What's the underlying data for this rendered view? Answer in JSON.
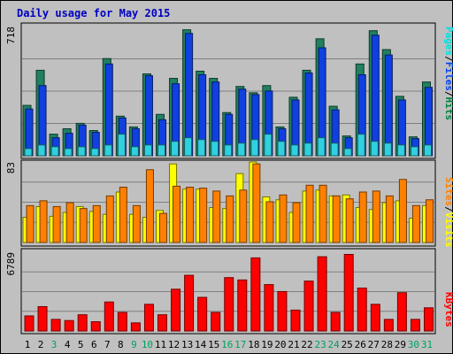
{
  "chart_data": [
    {
      "type": "bar",
      "title": "Daily usage for May 2015",
      "max_label": "718",
      "legend": [
        {
          "text": "Pages",
          "color": "#00e0e0"
        },
        {
          "text": "/",
          "color": "#000000"
        },
        {
          "text": "Files",
          "color": "#0044ee"
        },
        {
          "text": "/",
          "color": "#000000"
        },
        {
          "text": "Hits",
          "color": "#008040"
        }
      ],
      "ylim": [
        0,
        718
      ],
      "categories": [
        "1",
        "2",
        "3",
        "4",
        "5",
        "6",
        "7",
        "8",
        "9",
        "10",
        "11",
        "12",
        "13",
        "14",
        "15",
        "16",
        "17",
        "18",
        "19",
        "20",
        "21",
        "22",
        "23",
        "24",
        "25",
        "26",
        "27",
        "28",
        "29",
        "30",
        "31"
      ],
      "series": [
        {
          "name": "Hits",
          "color": "#208060",
          "values": [
            280,
            475,
            120,
            150,
            180,
            140,
            540,
            220,
            160,
            455,
            230,
            430,
            700,
            470,
            430,
            240,
            385,
            350,
            390,
            160,
            325,
            475,
            650,
            275,
            110,
            510,
            695,
            590,
            330,
            105,
            410
          ]
        },
        {
          "name": "Files",
          "color": "#1040e0",
          "values": [
            260,
            390,
            100,
            125,
            170,
            130,
            510,
            210,
            150,
            445,
            200,
            400,
            680,
            450,
            410,
            230,
            370,
            340,
            360,
            150,
            310,
            460,
            600,
            255,
            100,
            450,
            670,
            560,
            310,
            95,
            380
          ]
        },
        {
          "name": "Pages",
          "color": "#30d0e0",
          "values": [
            40,
            60,
            50,
            40,
            50,
            40,
            60,
            120,
            50,
            60,
            60,
            80,
            100,
            90,
            80,
            60,
            70,
            90,
            120,
            80,
            60,
            70,
            100,
            70,
            40,
            120,
            80,
            70,
            60,
            50,
            60
          ]
        }
      ]
    },
    {
      "type": "bar",
      "max_label": "83",
      "legend": [
        {
          "text": "Sites",
          "color": "#ff8000"
        },
        {
          "text": "/",
          "color": "#000000"
        },
        {
          "text": "Visits",
          "color": "#ffff00"
        }
      ],
      "ylim": [
        0,
        83
      ],
      "categories": [
        "1",
        "2",
        "3",
        "4",
        "5",
        "6",
        "7",
        "8",
        "9",
        "10",
        "11",
        "12",
        "13",
        "14",
        "15",
        "16",
        "17",
        "18",
        "19",
        "20",
        "21",
        "22",
        "23",
        "24",
        "25",
        "26",
        "27",
        "28",
        "29",
        "30",
        "31"
      ],
      "series": [
        {
          "name": "Visits",
          "color": "#ffff00",
          "values": [
            26,
            37,
            27,
            31,
            37,
            32,
            29,
            52,
            29,
            26,
            33,
            81,
            55,
            55,
            36,
            35,
            71,
            83,
            47,
            44,
            31,
            53,
            54,
            48,
            49,
            36,
            34,
            41,
            43,
            25,
            38
          ]
        },
        {
          "name": "Sites",
          "color": "#ff8000",
          "values": [
            38,
            43,
            37,
            41,
            35,
            38,
            48,
            57,
            38,
            75,
            30,
            58,
            57,
            56,
            53,
            48,
            54,
            81,
            42,
            49,
            41,
            59,
            59,
            48,
            45,
            52,
            53,
            48,
            65,
            38,
            44
          ]
        }
      ]
    },
    {
      "type": "bar",
      "max_label": "6789",
      "legend": [
        {
          "text": "KBytes",
          "color": "#ff0000"
        }
      ],
      "ylim": [
        0,
        6789
      ],
      "categories": [
        "1",
        "2",
        "3",
        "4",
        "5",
        "6",
        "7",
        "8",
        "9",
        "10",
        "11",
        "12",
        "13",
        "14",
        "15",
        "16",
        "17",
        "18",
        "19",
        "20",
        "21",
        "22",
        "23",
        "24",
        "25",
        "26",
        "27",
        "28",
        "29",
        "30",
        "31"
      ],
      "series": [
        {
          "name": "KBytes",
          "color": "#ff0000",
          "values": [
            1300,
            2100,
            1000,
            900,
            1400,
            800,
            2500,
            1600,
            700,
            2300,
            1400,
            3600,
            4800,
            2900,
            1600,
            4600,
            4400,
            6300,
            4000,
            3400,
            1800,
            4300,
            6400,
            1600,
            6600,
            3700,
            2300,
            1000,
            3300,
            1000,
            2000
          ]
        }
      ]
    }
  ],
  "day_labels": [
    {
      "text": "1",
      "color": "#000000"
    },
    {
      "text": "2",
      "color": "#000000"
    },
    {
      "text": "3",
      "color": "#00a060"
    },
    {
      "text": "4",
      "color": "#000000"
    },
    {
      "text": "5",
      "color": "#000000"
    },
    {
      "text": "6",
      "color": "#000000"
    },
    {
      "text": "7",
      "color": "#000000"
    },
    {
      "text": "8",
      "color": "#000000"
    },
    {
      "text": "9",
      "color": "#00a060"
    },
    {
      "text": "10",
      "color": "#00a060"
    },
    {
      "text": "11",
      "color": "#000000"
    },
    {
      "text": "12",
      "color": "#000000"
    },
    {
      "text": "13",
      "color": "#000000"
    },
    {
      "text": "14",
      "color": "#000000"
    },
    {
      "text": "15",
      "color": "#000000"
    },
    {
      "text": "16",
      "color": "#00a060"
    },
    {
      "text": "17",
      "color": "#00a060"
    },
    {
      "text": "18",
      "color": "#000000"
    },
    {
      "text": "19",
      "color": "#000000"
    },
    {
      "text": "20",
      "color": "#000000"
    },
    {
      "text": "21",
      "color": "#000000"
    },
    {
      "text": "22",
      "color": "#000000"
    },
    {
      "text": "23",
      "color": "#00a060"
    },
    {
      "text": "24",
      "color": "#00a060"
    },
    {
      "text": "25",
      "color": "#000000"
    },
    {
      "text": "26",
      "color": "#000000"
    },
    {
      "text": "27",
      "color": "#000000"
    },
    {
      "text": "28",
      "color": "#000000"
    },
    {
      "text": "29",
      "color": "#000000"
    },
    {
      "text": "30",
      "color": "#00a060"
    },
    {
      "text": "31",
      "color": "#00a060"
    }
  ]
}
